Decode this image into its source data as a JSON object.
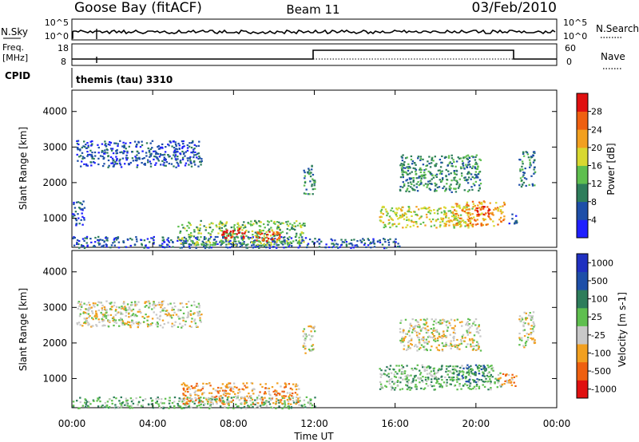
{
  "header": {
    "station": "Goose Bay (fitACF)",
    "beam": "Beam 11",
    "date": "03/Feb/2010"
  },
  "strip": {
    "nsky_label": "N.Sky",
    "nsky_top": "10^5",
    "nsky_bottom": "10^0",
    "nsearch_label": "N.Search",
    "nsearch_top": "10^5",
    "nsearch_bottom": "10^0",
    "freq_label": "Freq.",
    "freq_unit": "[MHz]",
    "freq_top": "18",
    "freq_bottom": "8",
    "nave_label": "Nave",
    "nave_top": "60",
    "nave_bottom": "0",
    "cpid_label": "CPID",
    "cpid_value": "themis (tau) 3310"
  },
  "xaxis": {
    "ticks": [
      "00:00",
      "04:00",
      "08:00",
      "12:00",
      "16:00",
      "20:00",
      "00:00"
    ],
    "label": "Time UT"
  },
  "colors": {
    "power": [
      "#1f1fff",
      "#1e4fa8",
      "#2e7d5b",
      "#5fbf4f",
      "#d8d830",
      "#f2a020",
      "#ef6010",
      "#e01010"
    ],
    "velocity": [
      "#e01010",
      "#ef6010",
      "#f2a020",
      "#c8c8c8",
      "#5fbf4f",
      "#2e7d5b",
      "#1e4fa8",
      "#2030c0"
    ]
  },
  "chart_data": [
    {
      "type": "heatmap",
      "name": "power",
      "ylabel": "Slant Range [km]",
      "yticks": [
        1000,
        2000,
        3000,
        4000
      ],
      "ylim": [
        180,
        4600
      ],
      "xlim_hours": [
        0,
        24
      ],
      "colorbar_label": "Power [dB]",
      "colorbar_ticks": [
        "4",
        "8",
        "12",
        "16",
        "20",
        "24",
        "28"
      ],
      "regions": [
        {
          "t0": 0.2,
          "t1": 6.4,
          "r0": 2450,
          "r1": 3200,
          "level": 1
        },
        {
          "t0": 0.0,
          "t1": 0.6,
          "r0": 800,
          "r1": 1500,
          "level": 1
        },
        {
          "t0": 0.0,
          "t1": 12.0,
          "r0": 180,
          "r1": 500,
          "level": 1
        },
        {
          "t0": 5.2,
          "t1": 11.5,
          "r0": 250,
          "r1": 950,
          "level": 3
        },
        {
          "t0": 7.4,
          "t1": 8.6,
          "r0": 450,
          "r1": 750,
          "level": 7
        },
        {
          "t0": 9.0,
          "t1": 10.3,
          "r0": 350,
          "r1": 650,
          "level": 6
        },
        {
          "t0": 11.4,
          "t1": 12.0,
          "r0": 1700,
          "r1": 2500,
          "level": 2
        },
        {
          "t0": 12.0,
          "t1": 16.2,
          "r0": 180,
          "r1": 450,
          "level": 1
        },
        {
          "t0": 15.2,
          "t1": 19.8,
          "r0": 750,
          "r1": 1350,
          "level": 4
        },
        {
          "t0": 16.2,
          "t1": 20.2,
          "r0": 1750,
          "r1": 2800,
          "level": 2
        },
        {
          "t0": 18.8,
          "t1": 21.4,
          "r0": 800,
          "r1": 1500,
          "level": 5
        },
        {
          "t0": 20.0,
          "t1": 20.7,
          "r0": 1100,
          "r1": 1350,
          "level": 7
        },
        {
          "t0": 22.1,
          "t1": 22.9,
          "r0": 1900,
          "r1": 2900,
          "level": 2
        },
        {
          "t0": 21.6,
          "t1": 22.0,
          "r0": 850,
          "r1": 1150,
          "level": 1
        }
      ]
    },
    {
      "type": "heatmap",
      "name": "velocity",
      "ylabel": "Slant Range [km]",
      "yticks": [
        1000,
        2000,
        3000,
        4000
      ],
      "ylim": [
        180,
        4600
      ],
      "xlim_hours": [
        0,
        24
      ],
      "colorbar_label": "Velocity [m s-1]",
      "colorbar_ticks": [
        "-1000",
        "-500",
        "-100",
        "-25",
        "25",
        "100",
        "500",
        "1000"
      ],
      "regions": [
        {
          "t0": 0.2,
          "t1": 6.4,
          "r0": 2450,
          "r1": 3200,
          "level": 3
        },
        {
          "t0": 0.0,
          "t1": 12.0,
          "r0": 180,
          "r1": 500,
          "level": 4
        },
        {
          "t0": 5.4,
          "t1": 11.2,
          "r0": 300,
          "r1": 900,
          "level": 2
        },
        {
          "t0": 11.4,
          "t1": 12.0,
          "r0": 1700,
          "r1": 2500,
          "level": 3
        },
        {
          "t0": 15.2,
          "t1": 21.2,
          "r0": 700,
          "r1": 1400,
          "level": 4
        },
        {
          "t0": 19.0,
          "t1": 20.5,
          "r0": 900,
          "r1": 1400,
          "level": 5
        },
        {
          "t0": 16.2,
          "t1": 20.2,
          "r0": 1800,
          "r1": 2700,
          "level": 3
        },
        {
          "t0": 22.1,
          "t1": 22.9,
          "r0": 1900,
          "r1": 2900,
          "level": 3
        },
        {
          "t0": 21.0,
          "t1": 22.0,
          "r0": 800,
          "r1": 1150,
          "level": 2
        }
      ]
    }
  ]
}
